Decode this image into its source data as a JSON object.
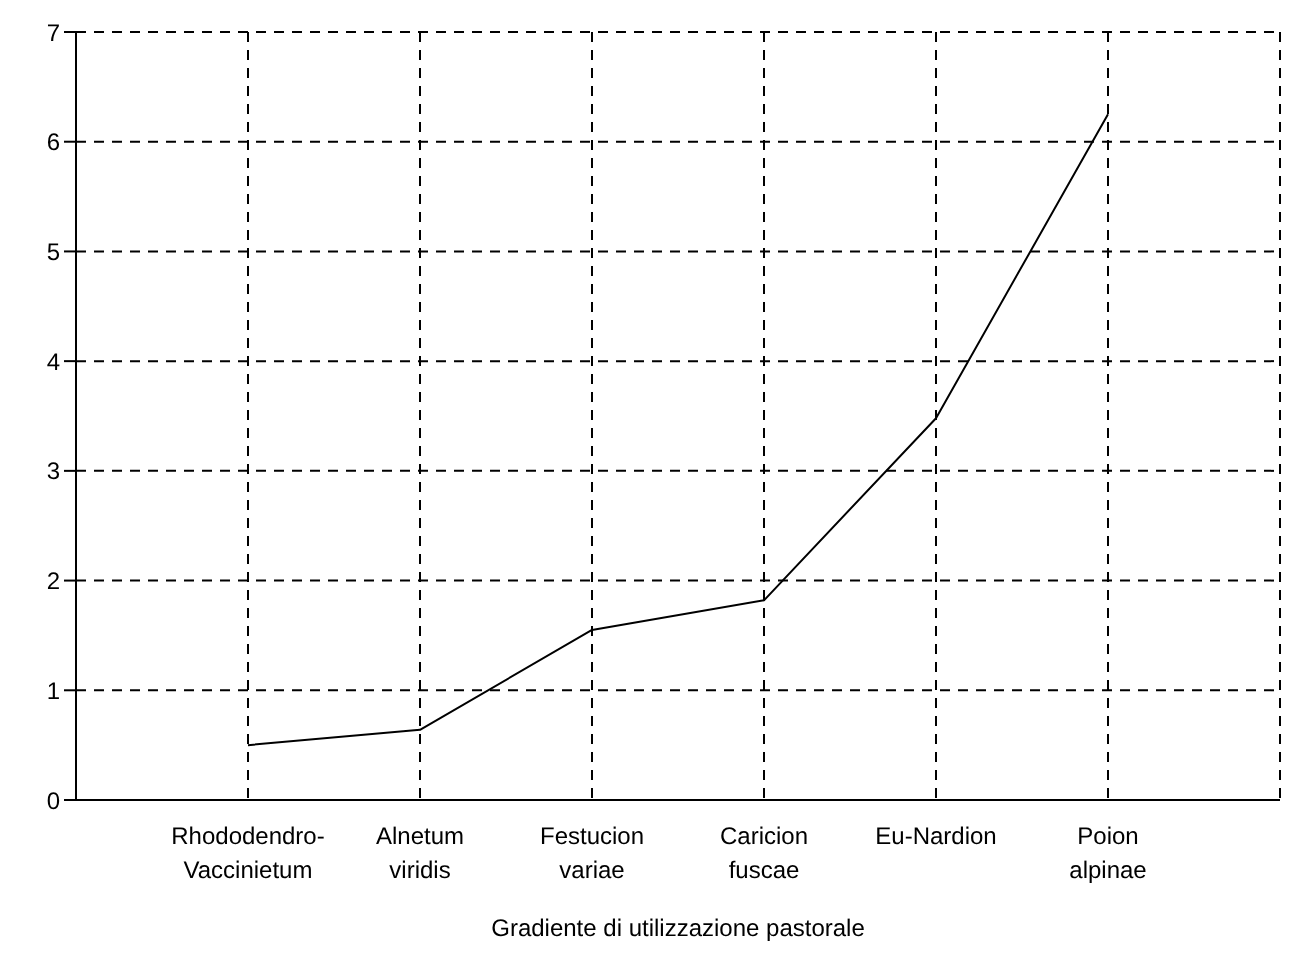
{
  "chart_data": {
    "type": "line",
    "xlabel": "Gradiente di utilizzazione pastorale",
    "categories": [
      "Rhododendro-\nVaccinietum",
      "Alnetum\nviridis",
      "Festucion\nvariae",
      "Caricion\nfuscae",
      "Eu-Nardion",
      "Poion\nalpinae"
    ],
    "series": [
      {
        "color": "#000000",
        "values": [
          0.5,
          0.64,
          1.55,
          1.82,
          3.48,
          6.25
        ]
      }
    ],
    "ylim": [
      0,
      7
    ],
    "yticks": [
      0,
      1,
      2,
      3,
      4,
      5,
      6,
      7
    ],
    "grid": true,
    "marker": "none",
    "line_style": "solid",
    "legend": false
  }
}
